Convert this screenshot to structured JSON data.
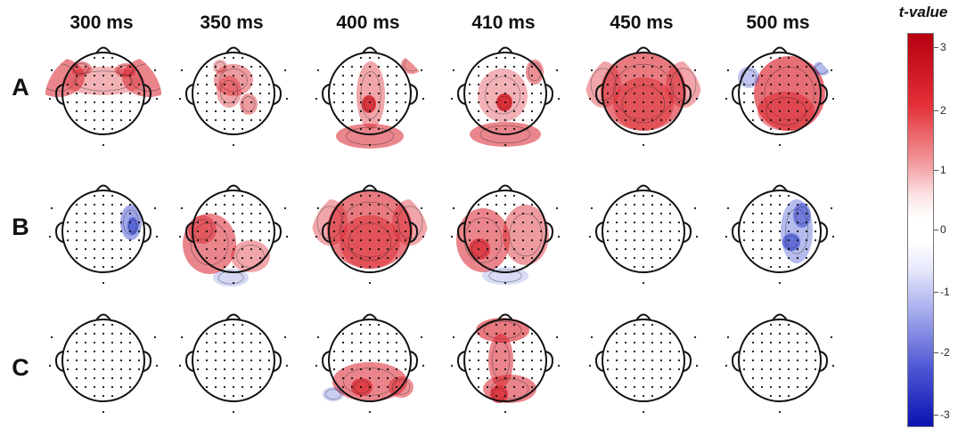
{
  "columns": [
    "300 ms",
    "350 ms",
    "400 ms",
    "410 ms",
    "450 ms",
    "500 ms"
  ],
  "rows": [
    "A",
    "B",
    "C"
  ],
  "colorbar": {
    "title": "t-value",
    "ticks": [
      "3",
      "2",
      "1",
      "0",
      "-1",
      "-2",
      "-3"
    ],
    "colors": {
      "max": "#b70010",
      "mid": "#ffffff",
      "min": "#0a14b0"
    }
  },
  "maps": [
    [
      "red-frontal-band",
      "red-central-patches",
      "red-midline-posterior",
      "red-central-spot",
      "red-broad",
      "red-broad-blue-left"
    ],
    [
      "blue-right-spot",
      "red-left-posterior",
      "red-broad",
      "red-broad-left",
      "blank",
      "blue-right-posterior"
    ],
    [
      "blank",
      "blank",
      "red-posterior",
      "red-midline-posterior",
      "blank",
      "blank"
    ]
  ]
}
